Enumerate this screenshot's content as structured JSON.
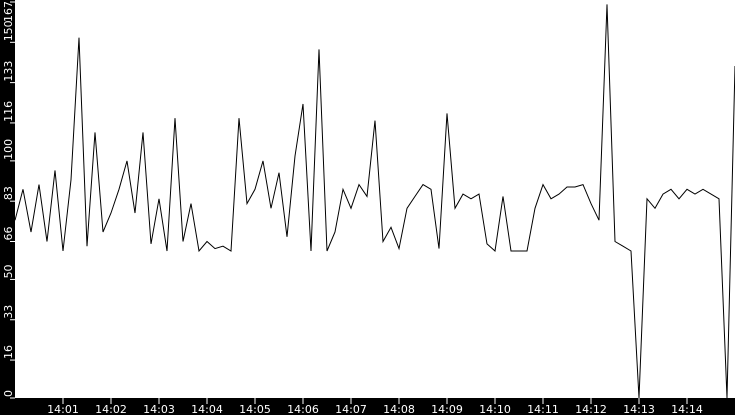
{
  "chart_data": {
    "type": "line",
    "title": "",
    "xlabel": "",
    "ylabel": "",
    "ylim": [
      0,
      167
    ],
    "xlim": [
      "14:00:00",
      "14:15:00"
    ],
    "grid": false,
    "colors": {
      "background": "#ffffff",
      "axis_background": "#000000",
      "line": "#000000",
      "tick_text": "#ffffff"
    },
    "y_ticks": [
      0,
      16,
      33,
      50,
      66,
      83,
      100,
      116,
      133,
      150,
      167
    ],
    "x_ticks": [
      "14:01",
      "14:02",
      "14:03",
      "14:04",
      "14:05",
      "14:06",
      "14:07",
      "14:08",
      "14:09",
      "14:10",
      "14:11",
      "14:12",
      "14:13",
      "14:14"
    ],
    "x": [
      "14:00:00",
      "14:00:10",
      "14:00:20",
      "14:00:30",
      "14:00:40",
      "14:00:50",
      "14:01:00",
      "14:01:10",
      "14:01:20",
      "14:01:30",
      "14:01:40",
      "14:01:50",
      "14:02:00",
      "14:02:10",
      "14:02:20",
      "14:02:30",
      "14:02:40",
      "14:02:50",
      "14:03:00",
      "14:03:10",
      "14:03:20",
      "14:03:30",
      "14:03:40",
      "14:03:50",
      "14:04:00",
      "14:04:10",
      "14:04:20",
      "14:04:30",
      "14:04:40",
      "14:04:50",
      "14:05:00",
      "14:05:10",
      "14:05:20",
      "14:05:30",
      "14:05:40",
      "14:05:50",
      "14:06:00",
      "14:06:10",
      "14:06:20",
      "14:06:30",
      "14:06:40",
      "14:06:50",
      "14:07:00",
      "14:07:10",
      "14:07:20",
      "14:07:30",
      "14:07:40",
      "14:07:50",
      "14:08:00",
      "14:08:10",
      "14:08:20",
      "14:08:30",
      "14:08:40",
      "14:08:50",
      "14:09:00",
      "14:09:10",
      "14:09:20",
      "14:09:30",
      "14:09:40",
      "14:09:50",
      "14:10:00",
      "14:10:10",
      "14:10:20",
      "14:10:30",
      "14:10:40",
      "14:10:50",
      "14:11:00",
      "14:11:10",
      "14:11:20",
      "14:11:30",
      "14:11:40",
      "14:11:50",
      "14:12:00",
      "14:12:10",
      "14:12:20",
      "14:12:30",
      "14:12:40",
      "14:12:50",
      "14:13:00",
      "14:13:10",
      "14:13:20",
      "14:13:30",
      "14:13:40",
      "14:13:50",
      "14:14:00",
      "14:14:10",
      "14:14:20",
      "14:14:30",
      "14:14:40",
      "14:14:50",
      "14:15:00"
    ],
    "y": [
      75,
      88,
      70,
      90,
      66,
      96,
      62,
      92,
      152,
      64,
      112,
      70,
      78,
      88,
      100,
      78,
      112,
      65,
      84,
      62,
      118,
      66,
      82,
      62,
      66,
      63,
      64,
      62,
      118,
      82,
      88,
      100,
      80,
      95,
      68,
      102,
      124,
      62,
      147,
      62,
      70,
      88,
      80,
      90,
      85,
      117,
      66,
      72,
      63,
      80,
      85,
      90,
      88,
      63,
      120,
      80,
      86,
      84,
      86,
      65,
      62,
      85,
      62,
      62,
      62,
      80,
      90,
      84,
      86,
      89,
      89,
      90,
      82,
      75,
      166,
      66,
      64,
      62,
      0,
      84,
      80,
      86,
      88,
      84,
      88,
      86,
      88,
      86,
      84,
      0,
      140
    ]
  }
}
